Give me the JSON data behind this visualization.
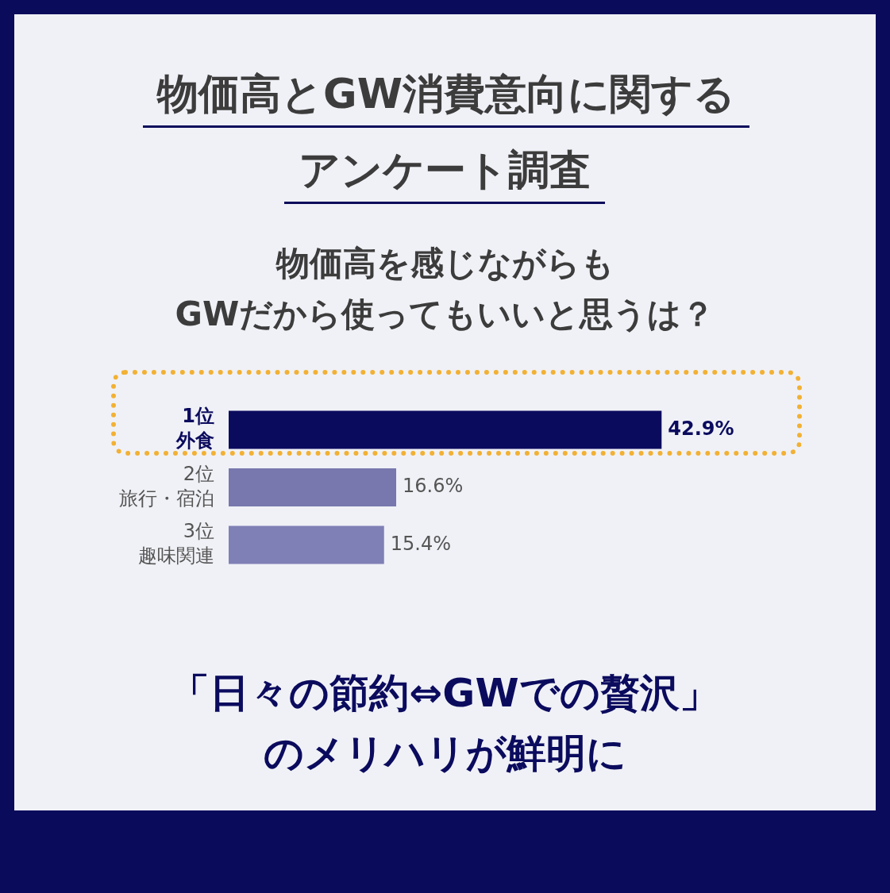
{
  "chart_data": {
    "type": "bar",
    "orientation": "horizontal",
    "title": "物価高とGW消費意向に関するアンケート調査",
    "subtitle": "物価高を感じながらも\nGWだから使ってもいいと思うは？",
    "categories": [
      "1位外食",
      "2位旅行・宿泊",
      "3位趣味関連"
    ],
    "values": [
      42.9,
      16.6,
      15.4
    ],
    "colors": [
      "#0b0b5e",
      "#7878ae",
      "#7f80b5"
    ],
    "value_labels": [
      "42.9%",
      "16.6%",
      "15.4%"
    ],
    "annotations": [
      "「日々の節約⇔GWでの贅沢」のメリハリが鮮明に"
    ]
  }
}
